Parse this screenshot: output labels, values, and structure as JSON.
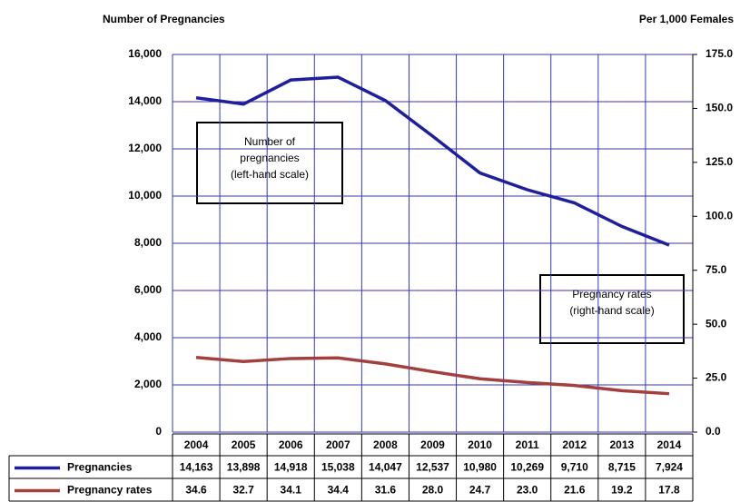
{
  "chart_data": {
    "type": "line",
    "y_label": "Number of Pregnancies",
    "y2_label": "Per 1,000 Females",
    "categories": [
      "2004",
      "2005",
      "2006",
      "2007",
      "2008",
      "2009",
      "2010",
      "2011",
      "2012",
      "2013",
      "2014"
    ],
    "series": [
      {
        "name": "Pregnancies",
        "color": "#1f1f9e",
        "values": [
          14163,
          13898,
          14918,
          15038,
          14047,
          12537,
          10980,
          10269,
          9710,
          8715,
          7924
        ],
        "value_labels": [
          "14,163",
          "13,898",
          "14,918",
          "15,038",
          "14,047",
          "12,537",
          "10,980",
          "10,269",
          "9,710",
          "8,715",
          "7,924"
        ]
      },
      {
        "name": "Pregnancy rates",
        "color": "#a33f3c",
        "axis": "y2",
        "values": [
          34.6,
          32.7,
          34.1,
          34.4,
          31.6,
          28.0,
          24.7,
          23.0,
          21.6,
          19.2,
          17.8
        ],
        "value_labels": [
          "34.6",
          "32.7",
          "34.1",
          "34.4",
          "31.6",
          "28.0",
          "24.7",
          "23.0",
          "21.6",
          "19.2",
          "17.8"
        ]
      }
    ],
    "ylim": [
      0,
      16000
    ],
    "yticks": [
      0,
      {
        "value": 2000,
        "label": "2,000"
      },
      {
        "value": 4000,
        "label": "4,000"
      },
      {
        "value": 6000,
        "label": "6,000"
      },
      {
        "value": 8000,
        "label": "8,000"
      },
      {
        "value": 10000,
        "label": "10,000"
      },
      {
        "value": 12000,
        "label": "12,000"
      },
      {
        "value": 14000,
        "label": "14,000"
      },
      {
        "value": 16000,
        "label": "16,000"
      }
    ],
    "y2lim": [
      0,
      175
    ],
    "y2ticks": [
      {
        "value": 0,
        "label": "0.0"
      },
      {
        "value": 25,
        "label": "25.0"
      },
      {
        "value": 50,
        "label": "50.0"
      },
      {
        "value": 75,
        "label": "75.0"
      },
      {
        "value": 100,
        "label": "100.0"
      },
      {
        "value": 125,
        "label": "125.0"
      },
      {
        "value": 150,
        "label": "150.0"
      },
      {
        "value": 175,
        "label": "175.0"
      }
    ],
    "grid": true,
    "annotations": [
      {
        "lines": [
          "Number of",
          "pregnancies",
          "(left-hand scale)"
        ]
      },
      {
        "lines": [
          "Pregnancy rates",
          "(right-hand scale)"
        ]
      }
    ]
  }
}
